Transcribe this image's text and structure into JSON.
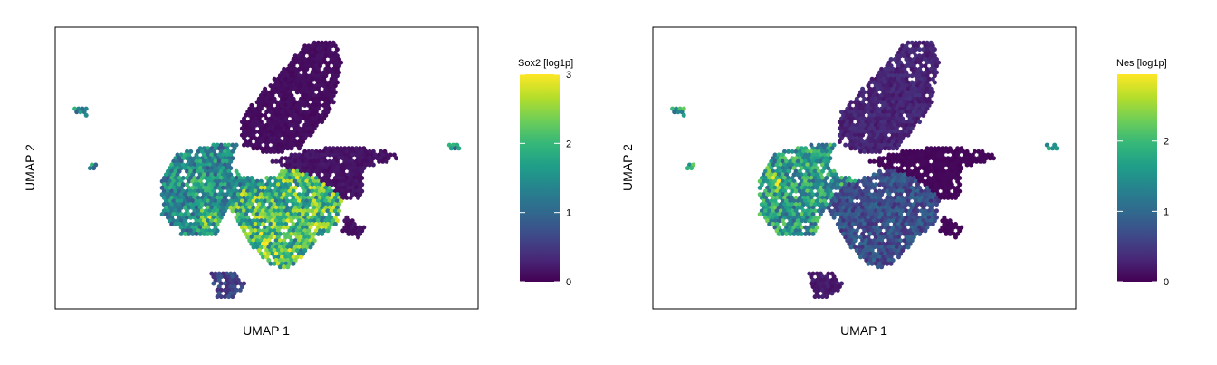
{
  "chart_data": [
    {
      "type": "scatter",
      "kind": "umap-hexbin",
      "xlabel": "UMAP 1",
      "ylabel": "UMAP 2",
      "colorbar": {
        "label": "Sox2 [log1p]",
        "ticks": [
          "0",
          "1",
          "2",
          "3"
        ],
        "tick_values": [
          0,
          1,
          2,
          3
        ],
        "range": [
          0,
          3
        ],
        "colormap": "viridis"
      },
      "regions": [
        {
          "name": "upper-elongated-cluster",
          "mean_value": 0.1
        },
        {
          "name": "left-central-cluster",
          "mean_value": 1.4
        },
        {
          "name": "central-lower-cluster",
          "mean_value": 2.0
        },
        {
          "name": "right-cluster",
          "mean_value": 0.15
        },
        {
          "name": "bottom-small-cluster",
          "mean_value": 0.6
        }
      ],
      "grid": false,
      "legend": "right"
    },
    {
      "type": "scatter",
      "kind": "umap-hexbin",
      "xlabel": "UMAP 1",
      "ylabel": "UMAP 2",
      "colorbar": {
        "label": "Nes [log1p]",
        "ticks": [
          "0",
          "1",
          "2"
        ],
        "tick_values": [
          0,
          1,
          2
        ],
        "range": [
          0,
          2.95
        ],
        "colormap": "viridis"
      },
      "regions": [
        {
          "name": "upper-elongated-cluster",
          "mean_value": 0.3
        },
        {
          "name": "left-central-cluster",
          "mean_value": 1.6
        },
        {
          "name": "central-lower-cluster",
          "mean_value": 0.7
        },
        {
          "name": "right-cluster",
          "mean_value": 0.05
        },
        {
          "name": "bottom-small-cluster",
          "mean_value": 0.2
        }
      ],
      "grid": false,
      "legend": "right"
    }
  ],
  "colors": {
    "viridis": [
      "#440154",
      "#482878",
      "#3e4a89",
      "#31688e",
      "#26828e",
      "#1f9e89",
      "#35b779",
      "#6ece58",
      "#b5de2b",
      "#fde725"
    ],
    "frame": "#000000",
    "background": "#ffffff"
  }
}
